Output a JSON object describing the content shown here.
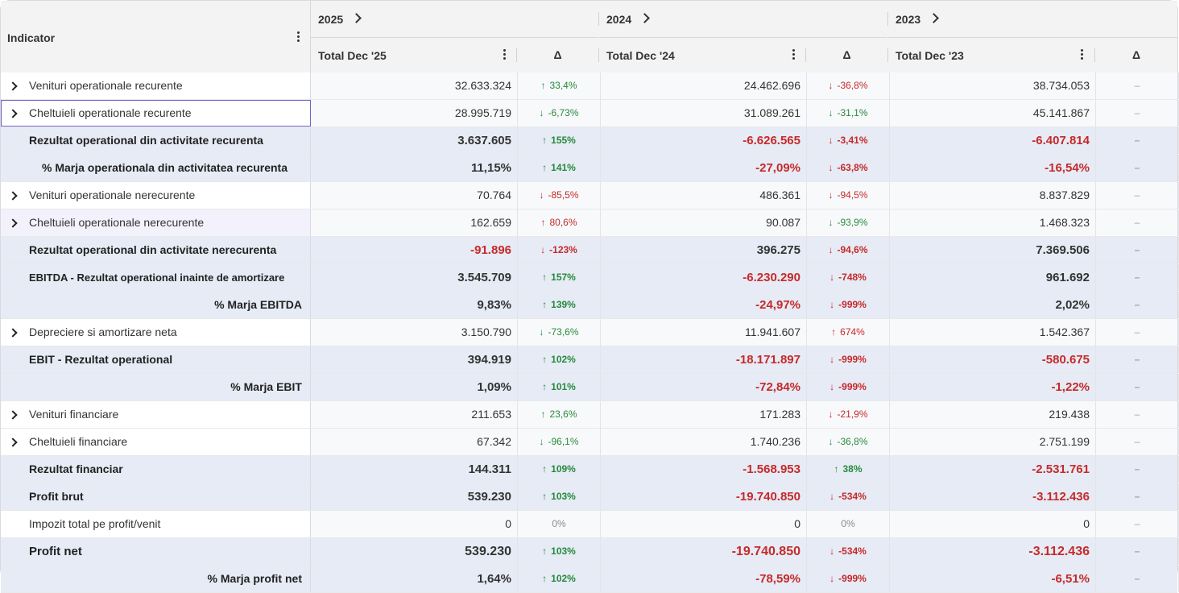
{
  "header": {
    "indicator_label": "Indicator",
    "delta_symbol": "Δ",
    "years": [
      {
        "label": "2025",
        "total_label": "Total Dec '25"
      },
      {
        "label": "2024",
        "total_label": "Total Dec '24"
      },
      {
        "label": "2023",
        "total_label": "Total Dec '23"
      }
    ]
  },
  "colors": {
    "negative": "#c62a2a",
    "positive": "#278a3c",
    "summary_row_bg": "#e6ebf5",
    "selection_outline": "#6f63c8"
  },
  "rows": [
    {
      "label": "Venituri operationale recurente",
      "type": "expandable",
      "v": [
        "32.633.324",
        "24.462.696",
        "38.734.053"
      ],
      "d": [
        {
          "arrow": "↑",
          "text": "33,4%",
          "tone": "up"
        },
        {
          "arrow": "↓",
          "text": "-36,8%",
          "tone": "down"
        },
        {
          "arrow": "",
          "text": "–",
          "tone": "none"
        }
      ]
    },
    {
      "label": "Cheltuieli operationale recurente",
      "type": "expandable",
      "selected": true,
      "v": [
        "28.995.719",
        "31.089.261",
        "45.141.867"
      ],
      "d": [
        {
          "arrow": "↓",
          "text": "-6,73%",
          "tone": "good-down"
        },
        {
          "arrow": "↓",
          "text": "-31,1%",
          "tone": "good-down"
        },
        {
          "arrow": "",
          "text": "–",
          "tone": "none"
        }
      ]
    },
    {
      "label": "Rezultat operational din activitate recurenta",
      "type": "sum",
      "v": [
        "3.637.605",
        "-6.626.565",
        "-6.407.814"
      ],
      "d": [
        {
          "arrow": "↑",
          "text": "155%",
          "tone": "up"
        },
        {
          "arrow": "↓",
          "text": "-3,41%",
          "tone": "down"
        },
        {
          "arrow": "",
          "text": "–",
          "tone": "none"
        }
      ]
    },
    {
      "label": "% Marja operationala din activitatea recurenta",
      "type": "sum",
      "align": "indent",
      "v": [
        "11,15%",
        "-27,09%",
        "-16,54%"
      ],
      "d": [
        {
          "arrow": "↑",
          "text": "141%",
          "tone": "up"
        },
        {
          "arrow": "↓",
          "text": "-63,8%",
          "tone": "down"
        },
        {
          "arrow": "",
          "text": "–",
          "tone": "none"
        }
      ]
    },
    {
      "label": "Venituri operationale nerecurente",
      "type": "expandable",
      "v": [
        "70.764",
        "486.361",
        "8.837.829"
      ],
      "d": [
        {
          "arrow": "↓",
          "text": "-85,5%",
          "tone": "down"
        },
        {
          "arrow": "↓",
          "text": "-94,5%",
          "tone": "down"
        },
        {
          "arrow": "",
          "text": "–",
          "tone": "none"
        }
      ]
    },
    {
      "label": "Cheltuieli operationale nerecurente",
      "type": "expandable",
      "hover": true,
      "v": [
        "162.659",
        "90.087",
        "1.468.323"
      ],
      "d": [
        {
          "arrow": "↑",
          "text": "80,6%",
          "tone": "bad-up"
        },
        {
          "arrow": "↓",
          "text": "-93,9%",
          "tone": "good-down"
        },
        {
          "arrow": "",
          "text": "–",
          "tone": "none"
        }
      ]
    },
    {
      "label": "Rezultat operational din activitate nerecurenta",
      "type": "sum",
      "v": [
        "-91.896",
        "396.275",
        "7.369.506"
      ],
      "d": [
        {
          "arrow": "↓",
          "text": "-123%",
          "tone": "down"
        },
        {
          "arrow": "↓",
          "text": "-94,6%",
          "tone": "down"
        },
        {
          "arrow": "",
          "text": "–",
          "tone": "none"
        }
      ]
    },
    {
      "label": "EBITDA - Rezultat operational inainte de amortizare",
      "type": "sum",
      "small": true,
      "v": [
        "3.545.709",
        "-6.230.290",
        "961.692"
      ],
      "d": [
        {
          "arrow": "↑",
          "text": "157%",
          "tone": "up"
        },
        {
          "arrow": "↓",
          "text": "-748%",
          "tone": "down"
        },
        {
          "arrow": "",
          "text": "–",
          "tone": "none"
        }
      ]
    },
    {
      "label": "% Marja EBITDA",
      "type": "sum",
      "align": "right",
      "v": [
        "9,83%",
        "-24,97%",
        "2,02%"
      ],
      "d": [
        {
          "arrow": "↑",
          "text": "139%",
          "tone": "up"
        },
        {
          "arrow": "↓",
          "text": "-999%",
          "tone": "down"
        },
        {
          "arrow": "",
          "text": "–",
          "tone": "none"
        }
      ]
    },
    {
      "label": "Depreciere si amortizare neta",
      "type": "expandable",
      "v": [
        "3.150.790",
        "11.941.607",
        "1.542.367"
      ],
      "d": [
        {
          "arrow": "↓",
          "text": "-73,6%",
          "tone": "good-down"
        },
        {
          "arrow": "↑",
          "text": "674%",
          "tone": "bad-up"
        },
        {
          "arrow": "",
          "text": "–",
          "tone": "none"
        }
      ]
    },
    {
      "label": "EBIT - Rezultat operational",
      "type": "sum",
      "v": [
        "394.919",
        "-18.171.897",
        "-580.675"
      ],
      "d": [
        {
          "arrow": "↑",
          "text": "102%",
          "tone": "up"
        },
        {
          "arrow": "↓",
          "text": "-999%",
          "tone": "down"
        },
        {
          "arrow": "",
          "text": "–",
          "tone": "none"
        }
      ]
    },
    {
      "label": "% Marja EBIT",
      "type": "sum",
      "align": "right",
      "v": [
        "1,09%",
        "-72,84%",
        "-1,22%"
      ],
      "d": [
        {
          "arrow": "↑",
          "text": "101%",
          "tone": "up"
        },
        {
          "arrow": "↓",
          "text": "-999%",
          "tone": "down"
        },
        {
          "arrow": "",
          "text": "–",
          "tone": "none"
        }
      ]
    },
    {
      "label": "Venituri financiare",
      "type": "expandable",
      "v": [
        "211.653",
        "171.283",
        "219.438"
      ],
      "d": [
        {
          "arrow": "↑",
          "text": "23,6%",
          "tone": "up"
        },
        {
          "arrow": "↓",
          "text": "-21,9%",
          "tone": "down"
        },
        {
          "arrow": "",
          "text": "–",
          "tone": "none"
        }
      ]
    },
    {
      "label": "Cheltuieli financiare",
      "type": "expandable",
      "v": [
        "67.342",
        "1.740.236",
        "2.751.199"
      ],
      "d": [
        {
          "arrow": "↓",
          "text": "-96,1%",
          "tone": "good-down"
        },
        {
          "arrow": "↓",
          "text": "-36,8%",
          "tone": "good-down"
        },
        {
          "arrow": "",
          "text": "–",
          "tone": "none"
        }
      ]
    },
    {
      "label": "Rezultat financiar",
      "type": "sum",
      "v": [
        "144.311",
        "-1.568.953",
        "-2.531.761"
      ],
      "d": [
        {
          "arrow": "↑",
          "text": "109%",
          "tone": "up"
        },
        {
          "arrow": "↑",
          "text": "38%",
          "tone": "up"
        },
        {
          "arrow": "",
          "text": "–",
          "tone": "none"
        }
      ]
    },
    {
      "label": "Profit brut",
      "type": "sum",
      "v": [
        "539.230",
        "-19.740.850",
        "-3.112.436"
      ],
      "d": [
        {
          "arrow": "↑",
          "text": "103%",
          "tone": "up"
        },
        {
          "arrow": "↓",
          "text": "-534%",
          "tone": "down"
        },
        {
          "arrow": "",
          "text": "–",
          "tone": "none"
        }
      ]
    },
    {
      "label": "Impozit total pe profit/venit",
      "type": "plain",
      "v": [
        "0",
        "0",
        "0"
      ],
      "d": [
        {
          "arrow": "",
          "text": "0%",
          "tone": "flat"
        },
        {
          "arrow": "",
          "text": "0%",
          "tone": "flat"
        },
        {
          "arrow": "",
          "text": "–",
          "tone": "none"
        }
      ]
    },
    {
      "label": "Profit net",
      "type": "sum",
      "big": true,
      "v": [
        "539.230",
        "-19.740.850",
        "-3.112.436"
      ],
      "d": [
        {
          "arrow": "↑",
          "text": "103%",
          "tone": "up"
        },
        {
          "arrow": "↓",
          "text": "-534%",
          "tone": "down"
        },
        {
          "arrow": "",
          "text": "–",
          "tone": "none"
        }
      ]
    },
    {
      "label": "% Marja profit net",
      "type": "sum",
      "align": "right",
      "v": [
        "1,64%",
        "-78,59%",
        "-6,51%"
      ],
      "d": [
        {
          "arrow": "↑",
          "text": "102%",
          "tone": "up"
        },
        {
          "arrow": "↓",
          "text": "-999%",
          "tone": "down"
        },
        {
          "arrow": "",
          "text": "–",
          "tone": "none"
        }
      ]
    }
  ]
}
